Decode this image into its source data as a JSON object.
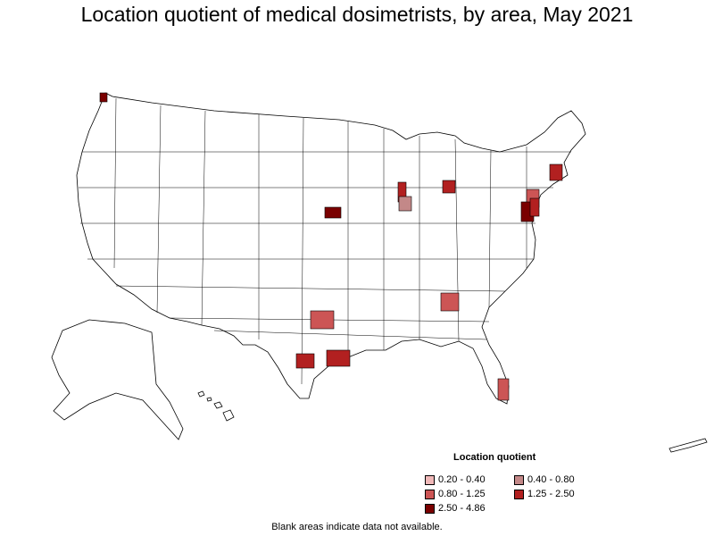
{
  "title": "Location quotient of medical dosimetrists, by area, May 2021",
  "legend": {
    "title": "Location quotient",
    "items": [
      {
        "label": "0.20 - 0.40",
        "color": "#f0b8b8"
      },
      {
        "label": "0.40 - 0.80",
        "color": "#c38888"
      },
      {
        "label": "0.80 - 1.25",
        "color": "#cc5555"
      },
      {
        "label": "1.25 - 2.50",
        "color": "#b22020"
      },
      {
        "label": "2.50 - 4.86",
        "color": "#7a0000"
      }
    ]
  },
  "note": "Blank areas indicate data not available.",
  "colors": {
    "border": "#000000",
    "land": "#ffffff"
  }
}
